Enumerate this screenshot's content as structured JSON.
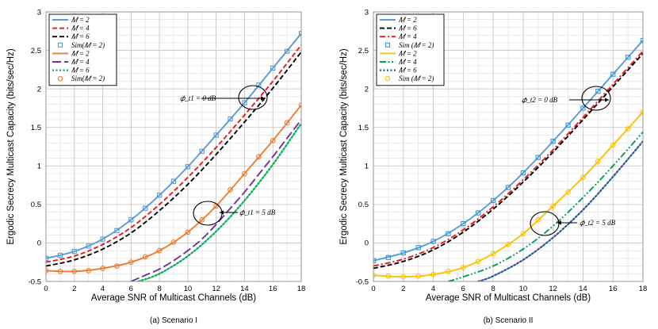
{
  "chart_data": [
    {
      "type": "line",
      "caption": "(a) Scenario I",
      "xlabel": "Average SNR of Multicast Channels (dB)",
      "ylabel": "Ergodic Secrecy Multicast Capacity (bits/sec/Hz)",
      "xlim": [
        0,
        18
      ],
      "ylim": [
        -0.5,
        3
      ],
      "xticks": [
        0,
        2,
        4,
        6,
        8,
        10,
        12,
        14,
        16,
        18
      ],
      "yticks": [
        -0.5,
        0,
        0.5,
        1,
        1.5,
        2,
        2.5,
        3
      ],
      "grid": true,
      "legend_position": "top-left",
      "series": [
        {
          "name": "𝑀 = 2",
          "color": "#5B9BD5",
          "style": "solid",
          "x": [
            0,
            2,
            4,
            6,
            8,
            10,
            12,
            14,
            16,
            18
          ],
          "y": [
            -0.2,
            -0.11,
            0.05,
            0.3,
            0.62,
            0.99,
            1.4,
            1.82,
            2.27,
            2.72
          ]
        },
        {
          "name": "𝑀 = 4",
          "color": "#E41A1C",
          "style": "dash",
          "x": [
            0,
            2,
            4,
            6,
            8,
            10,
            12,
            14,
            16,
            18
          ],
          "y": [
            -0.25,
            -0.17,
            -0.02,
            0.2,
            0.5,
            0.85,
            1.24,
            1.66,
            2.1,
            2.57
          ]
        },
        {
          "name": "𝑀 = 6",
          "color": "#000000",
          "style": "dash",
          "x": [
            0,
            2,
            4,
            6,
            8,
            10,
            12,
            14,
            16,
            18
          ],
          "y": [
            -0.3,
            -0.22,
            -0.08,
            0.13,
            0.42,
            0.76,
            1.15,
            1.57,
            2.01,
            2.48
          ]
        },
        {
          "name": "Sim(𝑀 = 2)",
          "color": "#5B9BD5",
          "style": "marker-square",
          "x": [
            0,
            1,
            2,
            3,
            4,
            5,
            6,
            7,
            8,
            9,
            10,
            11,
            12,
            13,
            14,
            15,
            16,
            17,
            18
          ],
          "y": [
            -0.2,
            -0.16,
            -0.11,
            -0.04,
            0.05,
            0.16,
            0.3,
            0.45,
            0.62,
            0.8,
            0.99,
            1.19,
            1.4,
            1.61,
            1.82,
            2.05,
            2.27,
            2.49,
            2.72
          ]
        },
        {
          "name": "𝑀 = 2",
          "color": "#ED7D31",
          "style": "solid",
          "x": [
            0,
            2,
            4,
            6,
            8,
            10,
            12,
            14,
            16,
            18
          ],
          "y": [
            -0.36,
            -0.37,
            -0.33,
            -0.25,
            -0.1,
            0.14,
            0.48,
            0.9,
            1.33,
            1.79
          ]
        },
        {
          "name": "𝑀 = 4",
          "color": "#7030A0",
          "style": "longdash",
          "x": [
            6,
            7,
            8,
            9,
            10,
            11,
            12,
            13,
            14,
            15,
            16,
            17,
            18
          ],
          "y": [
            -0.5,
            -0.42,
            -0.34,
            -0.23,
            -0.1,
            0.05,
            0.24,
            0.45,
            0.66,
            0.89,
            1.12,
            1.36,
            1.6
          ]
        },
        {
          "name": "𝑀 = 6",
          "color": "#00B050",
          "style": "dot",
          "x": [
            6.5,
            8,
            10,
            12,
            14,
            16,
            18
          ],
          "y": [
            -0.5,
            -0.4,
            -0.17,
            0.15,
            0.55,
            1.02,
            1.55
          ]
        },
        {
          "name": "Sim(𝑀 = 2)",
          "color": "#ED7D31",
          "style": "marker-circle",
          "x": [
            0,
            1,
            2,
            3,
            4,
            5,
            6,
            7,
            8,
            9,
            10,
            11,
            12,
            13,
            14,
            15,
            16,
            17,
            18
          ],
          "y": [
            -0.36,
            -0.37,
            -0.37,
            -0.36,
            -0.33,
            -0.3,
            -0.25,
            -0.18,
            -0.1,
            0.01,
            0.14,
            0.3,
            0.48,
            0.69,
            0.9,
            1.12,
            1.33,
            1.56,
            1.79
          ]
        }
      ],
      "annotations": [
        {
          "text": "𝜙_t1 = 0 dB",
          "target_x": 15,
          "target_y": 1.92
        },
        {
          "text": "𝜙_t1 = 5 dB",
          "target_x": 11.8,
          "target_y": 0.45
        }
      ]
    },
    {
      "type": "line",
      "caption": "(b) Scenario II",
      "xlabel": "Average SNR of Multicast Channels (dB)",
      "ylabel": "Ergodic Secrecy Multicast Capacity (bits/sec/Hz)",
      "xlim": [
        0,
        18
      ],
      "ylim": [
        -0.5,
        3
      ],
      "xticks": [
        0,
        2,
        4,
        6,
        8,
        10,
        12,
        14,
        16,
        18
      ],
      "yticks": [
        -0.5,
        0,
        0.5,
        1,
        1.5,
        2,
        2.5,
        3
      ],
      "grid": true,
      "legend_position": "top-left",
      "series": [
        {
          "name": "𝑀 = 2",
          "color": "#5B9BD5",
          "style": "solid",
          "x": [
            0,
            2,
            4,
            6,
            8,
            10,
            12,
            14,
            16,
            18
          ],
          "y": [
            -0.23,
            -0.13,
            0.02,
            0.25,
            0.55,
            0.91,
            1.32,
            1.75,
            2.19,
            2.63
          ]
        },
        {
          "name": "𝑀 = 6",
          "color": "#000000",
          "style": "dash",
          "x": [
            0,
            2,
            4,
            6,
            8,
            10,
            12,
            14,
            16,
            18
          ],
          "y": [
            -0.33,
            -0.24,
            -0.09,
            0.14,
            0.44,
            0.79,
            1.18,
            1.6,
            2.03,
            2.46
          ]
        },
        {
          "name": "𝑀 = 4",
          "color": "#E41A1C",
          "style": "dashdot",
          "x": [
            0,
            2,
            4,
            6,
            8,
            10,
            12,
            14,
            16,
            18
          ],
          "y": [
            -0.3,
            -0.21,
            -0.06,
            0.17,
            0.47,
            0.82,
            1.21,
            1.63,
            2.06,
            2.49
          ]
        },
        {
          "name": "Sim (𝑀 = 2)",
          "color": "#2E9CDB",
          "style": "marker-square",
          "x": [
            0,
            1,
            2,
            3,
            4,
            5,
            6,
            7,
            8,
            9,
            10,
            11,
            12,
            13,
            14,
            15,
            16,
            17,
            18
          ],
          "y": [
            -0.23,
            -0.19,
            -0.13,
            -0.06,
            0.02,
            0.12,
            0.25,
            0.39,
            0.55,
            0.72,
            0.91,
            1.11,
            1.32,
            1.53,
            1.75,
            1.97,
            2.19,
            2.41,
            2.63
          ]
        },
        {
          "name": "𝑀 = 2",
          "color": "#FFC000",
          "style": "solid",
          "x": [
            0,
            2,
            4,
            6,
            8,
            10,
            12,
            14,
            16,
            18
          ],
          "y": [
            -0.42,
            -0.44,
            -0.41,
            -0.32,
            -0.14,
            0.12,
            0.48,
            0.85,
            1.27,
            1.7
          ]
        },
        {
          "name": "𝑀 = 4",
          "color": "#00A050",
          "style": "dashdotdot",
          "x": [
            5,
            6,
            8,
            10,
            12,
            14,
            16,
            18
          ],
          "y": [
            -0.5,
            -0.44,
            -0.3,
            -0.08,
            0.22,
            0.59,
            1.0,
            1.44
          ]
        },
        {
          "name": "𝑀 = 6",
          "color": "#2F5597",
          "style": "dot",
          "x": [
            7,
            8,
            10,
            12,
            14,
            16,
            18
          ],
          "y": [
            -0.5,
            -0.43,
            -0.22,
            0.07,
            0.43,
            0.86,
            1.32
          ]
        },
        {
          "name": "Sim (𝑀 = 2)",
          "color": "#FFC000",
          "style": "marker-circle",
          "x": [
            0,
            1,
            2,
            3,
            4,
            5,
            6,
            7,
            8,
            9,
            10,
            11,
            12,
            13,
            14,
            15,
            16,
            17,
            18
          ],
          "y": [
            -0.42,
            -0.43,
            -0.44,
            -0.43,
            -0.41,
            -0.37,
            -0.32,
            -0.24,
            -0.14,
            -0.02,
            0.12,
            0.3,
            0.48,
            0.66,
            0.85,
            1.06,
            1.27,
            1.48,
            1.7
          ]
        }
      ],
      "annotations": [
        {
          "text": "𝜙_t2 = 0 dB",
          "target_x": 15.2,
          "target_y": 1.9
        },
        {
          "text": "𝜙_t2 = 5 dB",
          "target_x": 11.5,
          "target_y": 0.25
        }
      ]
    }
  ]
}
